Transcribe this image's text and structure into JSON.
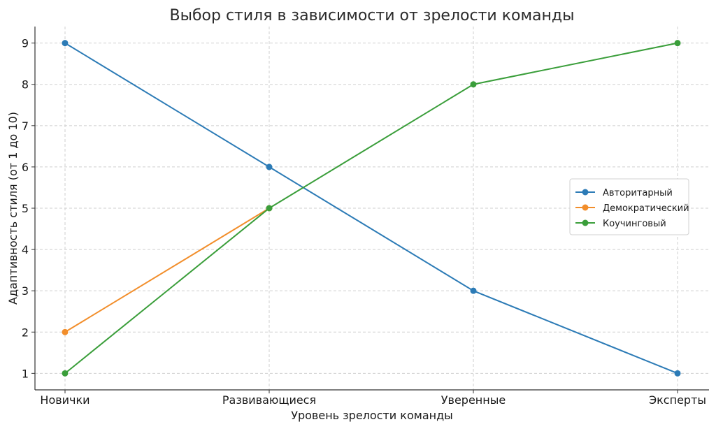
{
  "chart_data": {
    "type": "line",
    "title": "Выбор стиля в зависимости от зрелости команды",
    "xlabel": "Уровень зрелости команды",
    "ylabel": "Адаптивность стиля (от 1 до 10)",
    "categories": [
      "Новички",
      "Развивающиеся",
      "Уверенные",
      "Эксперты"
    ],
    "yticks": [
      1,
      2,
      3,
      4,
      5,
      6,
      7,
      8,
      9
    ],
    "ylim": [
      0.6,
      9.4
    ],
    "grid": true,
    "legend_position": "right",
    "series": [
      {
        "name": "Авторитарный",
        "color": "#2c7bb6",
        "values": [
          9,
          6,
          3,
          1
        ]
      },
      {
        "name": "Демократический",
        "color": "#f28e2b",
        "values": [
          2,
          5,
          null,
          null
        ]
      },
      {
        "name": "Коучинговый",
        "color": "#3a9e3a",
        "values": [
          1,
          5,
          8,
          9
        ]
      }
    ]
  }
}
